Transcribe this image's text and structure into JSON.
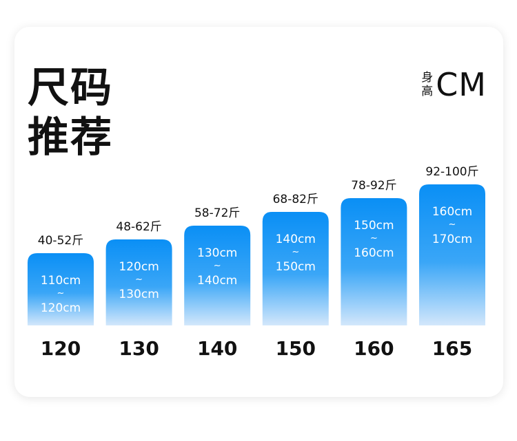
{
  "title_line1": "尺码",
  "title_line2": "推荐",
  "unit_label_line1": "身",
  "unit_label_line2": "高",
  "unit_value": "CM",
  "colors": {
    "bar_top": "#0a8ff5",
    "bar_bottom": "#d3e7fb",
    "text_dark": "#111111",
    "text_on_bar": "#ffffff"
  },
  "chart_data": {
    "type": "bar",
    "categories": [
      "120",
      "130",
      "140",
      "150",
      "160",
      "165"
    ],
    "weight_labels": [
      "40-52斤",
      "48-62斤",
      "58-72斤",
      "68-82斤",
      "78-92斤",
      "92-100斤"
    ],
    "height_ranges": [
      {
        "from": "110cm",
        "sep": "~",
        "to": "120cm"
      },
      {
        "from": "120cm",
        "sep": "~",
        "to": "130cm"
      },
      {
        "from": "130cm",
        "sep": "~",
        "to": "140cm"
      },
      {
        "from": "140cm",
        "sep": "~",
        "to": "150cm"
      },
      {
        "from": "150cm",
        "sep": "~",
        "to": "160cm"
      },
      {
        "from": "160cm",
        "sep": "~",
        "to": "170cm"
      }
    ],
    "values": [
      120,
      130,
      140,
      150,
      160,
      165
    ],
    "ylim": [
      0,
      165
    ]
  }
}
